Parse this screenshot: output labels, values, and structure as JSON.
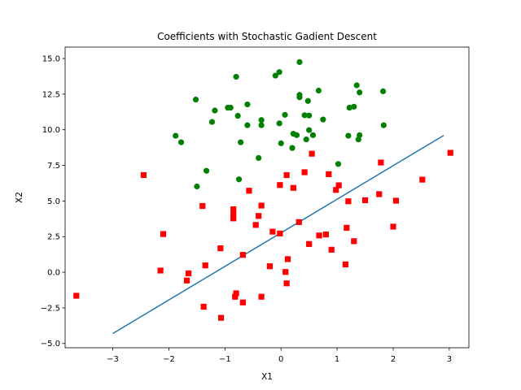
{
  "chart_data": {
    "type": "scatter",
    "title": "Coefficients with Stochastic Gadient Descent",
    "xlabel": "X1",
    "ylabel": "X2",
    "xlim": [
      -3.85,
      3.35
    ],
    "ylim": [
      -5.3,
      15.8
    ],
    "xticks": [
      -3,
      -2,
      -1,
      0,
      1,
      2,
      3
    ],
    "yticks": [
      -5.0,
      -2.5,
      0.0,
      2.5,
      5.0,
      7.5,
      10.0,
      12.5,
      15.0
    ],
    "xtick_labels": [
      "−3",
      "−2",
      "−1",
      "0",
      "1",
      "2",
      "3"
    ],
    "ytick_labels": [
      "−5.0",
      "−2.5",
      "0.0",
      "2.5",
      "5.0",
      "7.5",
      "10.0",
      "12.5",
      "15.0"
    ],
    "grid": false,
    "series": [
      {
        "marker": "circle",
        "color": "#008000",
        "points": [
          [
            -0.1,
            13.8
          ],
          [
            -0.03,
            14.05
          ],
          [
            0.33,
            14.75
          ],
          [
            -0.8,
            13.72
          ],
          [
            1.35,
            13.12
          ],
          [
            -1.52,
            12.12
          ],
          [
            0.33,
            12.28
          ],
          [
            0.33,
            12.45
          ],
          [
            0.67,
            12.75
          ],
          [
            1.4,
            12.62
          ],
          [
            1.82,
            12.7
          ],
          [
            0.48,
            12.02
          ],
          [
            -0.6,
            11.78
          ],
          [
            -1.18,
            11.35
          ],
          [
            -0.95,
            11.55
          ],
          [
            -0.9,
            11.55
          ],
          [
            1.22,
            11.55
          ],
          [
            1.3,
            11.62
          ],
          [
            0.07,
            11.05
          ],
          [
            0.42,
            11.02
          ],
          [
            0.5,
            11.0
          ],
          [
            -0.77,
            10.98
          ],
          [
            0.75,
            10.72
          ],
          [
            -0.35,
            10.68
          ],
          [
            -1.23,
            10.55
          ],
          [
            -0.35,
            10.32
          ],
          [
            -0.6,
            10.32
          ],
          [
            -0.03,
            10.45
          ],
          [
            1.83,
            10.32
          ],
          [
            0.5,
            9.98
          ],
          [
            0.57,
            9.62
          ],
          [
            0.22,
            9.72
          ],
          [
            0.28,
            9.62
          ],
          [
            1.4,
            9.62
          ],
          [
            1.38,
            9.32
          ],
          [
            1.2,
            9.58
          ],
          [
            -1.88,
            9.58
          ],
          [
            -1.78,
            9.12
          ],
          [
            -0.72,
            9.12
          ],
          [
            0.0,
            9.05
          ],
          [
            0.45,
            9.32
          ],
          [
            0.2,
            8.72
          ],
          [
            -0.4,
            8.02
          ],
          [
            1.02,
            7.6
          ],
          [
            -1.33,
            7.12
          ],
          [
            -0.75,
            6.52
          ],
          [
            -1.5,
            6.02
          ]
        ]
      },
      {
        "marker": "square",
        "color": "#ff0000",
        "points": [
          [
            3.02,
            8.38
          ],
          [
            0.55,
            8.32
          ],
          [
            1.78,
            7.7
          ],
          [
            -2.45,
            6.82
          ],
          [
            0.1,
            6.82
          ],
          [
            0.42,
            7.02
          ],
          [
            0.85,
            6.88
          ],
          [
            2.52,
            6.5
          ],
          [
            -0.02,
            6.12
          ],
          [
            1.03,
            6.1
          ],
          [
            0.22,
            5.92
          ],
          [
            0.98,
            5.78
          ],
          [
            -0.57,
            5.72
          ],
          [
            1.75,
            5.48
          ],
          [
            1.2,
            4.98
          ],
          [
            1.5,
            5.05
          ],
          [
            2.05,
            5.02
          ],
          [
            -1.4,
            4.65
          ],
          [
            -0.35,
            4.68
          ],
          [
            -0.85,
            4.42
          ],
          [
            -0.85,
            4.05
          ],
          [
            -0.4,
            3.95
          ],
          [
            -0.85,
            3.78
          ],
          [
            0.32,
            3.52
          ],
          [
            -0.45,
            3.32
          ],
          [
            2.0,
            3.2
          ],
          [
            1.17,
            3.12
          ],
          [
            -0.15,
            2.85
          ],
          [
            -0.02,
            2.72
          ],
          [
            -2.1,
            2.68
          ],
          [
            0.8,
            2.65
          ],
          [
            0.68,
            2.58
          ],
          [
            1.3,
            2.18
          ],
          [
            0.5,
            1.98
          ],
          [
            -1.08,
            1.68
          ],
          [
            0.9,
            1.58
          ],
          [
            -0.68,
            1.22
          ],
          [
            0.12,
            0.92
          ],
          [
            1.15,
            0.55
          ],
          [
            -1.35,
            0.48
          ],
          [
            -0.2,
            0.42
          ],
          [
            -2.15,
            0.12
          ],
          [
            0.08,
            0.02
          ],
          [
            -1.65,
            -0.08
          ],
          [
            -1.68,
            -0.58
          ],
          [
            0.1,
            -0.78
          ],
          [
            -0.8,
            -1.48
          ],
          [
            -3.65,
            -1.65
          ],
          [
            -0.82,
            -1.72
          ],
          [
            -0.35,
            -1.72
          ],
          [
            -0.68,
            -2.12
          ],
          [
            -1.38,
            -2.42
          ],
          [
            -1.07,
            -3.2
          ]
        ]
      }
    ],
    "line": {
      "color": "#1f77b4",
      "points": [
        [
          -3.0,
          -4.3
        ],
        [
          2.9,
          9.6
        ]
      ]
    }
  }
}
